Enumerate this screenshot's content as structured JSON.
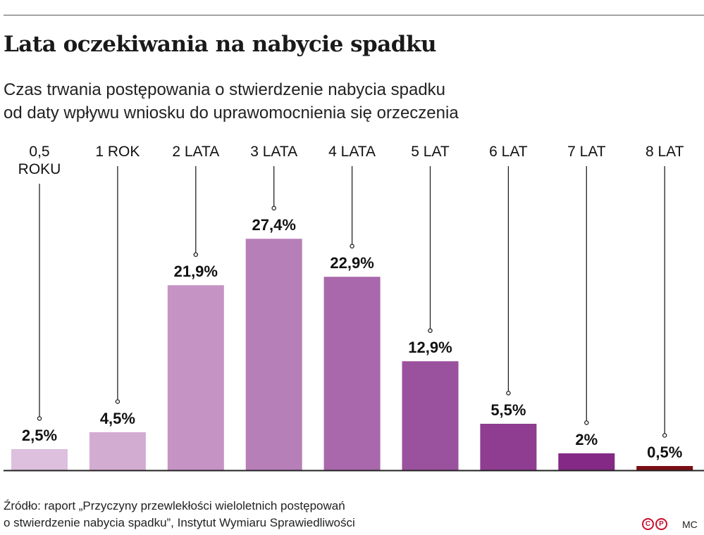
{
  "title": "Lata oczekiwania na nabycie spadku",
  "subtitle": [
    "Czas trwania postępowania o stwierdzenie nabycia spadku",
    "od daty wpływu wniosku do uprawomocnienia się orzeczenia"
  ],
  "source": [
    "Źródło: raport „Przyczyny przewlekłości wieloletnich postępowań",
    "o stwierdzenie nabycia spadku”, Instytut Wymiaru Sprawiedliwości"
  ],
  "logo": {
    "letters": [
      "C",
      "P"
    ],
    "color": "#c8102e"
  },
  "credit": "MC",
  "chart_data": {
    "type": "bar",
    "categories": [
      "0,5\nROKU",
      "1 ROK",
      "2 LATA",
      "3 LATA",
      "4 LATA",
      "5 LAT",
      "6 LAT",
      "7 LAT",
      "8 LAT"
    ],
    "values": [
      2.5,
      4.5,
      21.9,
      27.4,
      22.9,
      12.9,
      5.5,
      2,
      0.5
    ],
    "value_labels": [
      "2,5%",
      "4,5%",
      "21,9%",
      "27,4%",
      "22,9%",
      "12,9%",
      "5,5%",
      "2%",
      "0,5%"
    ],
    "colors": [
      "#dcc0de",
      "#d3acd2",
      "#c593c4",
      "#b77fb8",
      "#a868ab",
      "#9b529e",
      "#8e3d91",
      "#842a86",
      "#7a0f14"
    ],
    "ylim": [
      0,
      30
    ],
    "grid": false,
    "legend": "none"
  }
}
